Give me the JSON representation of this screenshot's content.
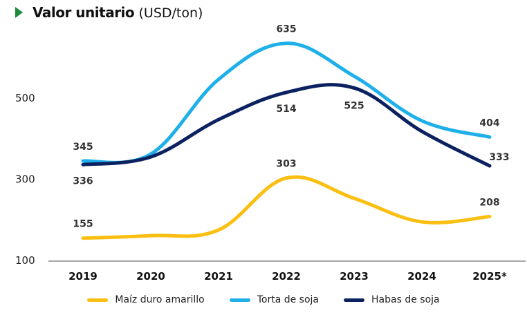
{
  "chart_data": {
    "type": "line",
    "title": "Valor unitario",
    "subtitle": "(USD/ton)",
    "x": [
      "2019",
      "2020",
      "2021",
      "2022",
      "2023",
      "2024",
      "2025*"
    ],
    "yticks": [
      100,
      300,
      500
    ],
    "ylim": [
      100,
      640
    ],
    "grid": false,
    "legend_position": "bottom",
    "series": [
      {
        "name": "Maíz duro amarillo",
        "color": "#fbbf12",
        "values": [
          155,
          161,
          175,
          303,
          253,
          195,
          208
        ],
        "labels": {
          "0": "155",
          "3": "303",
          "6": "208"
        }
      },
      {
        "name": "Torta de soja",
        "color": "#1fb0ea",
        "values": [
          345,
          362,
          546,
          635,
          554,
          444,
          404
        ],
        "labels": {
          "0": "345",
          "3": "635",
          "6": "404"
        }
      },
      {
        "name": "Habas de soja",
        "color": "#0c2260",
        "values": [
          336,
          355,
          447,
          514,
          525,
          418,
          333
        ],
        "labels": {
          "0": "336",
          "3": "514",
          "4": "525",
          "6": "333"
        }
      }
    ]
  }
}
